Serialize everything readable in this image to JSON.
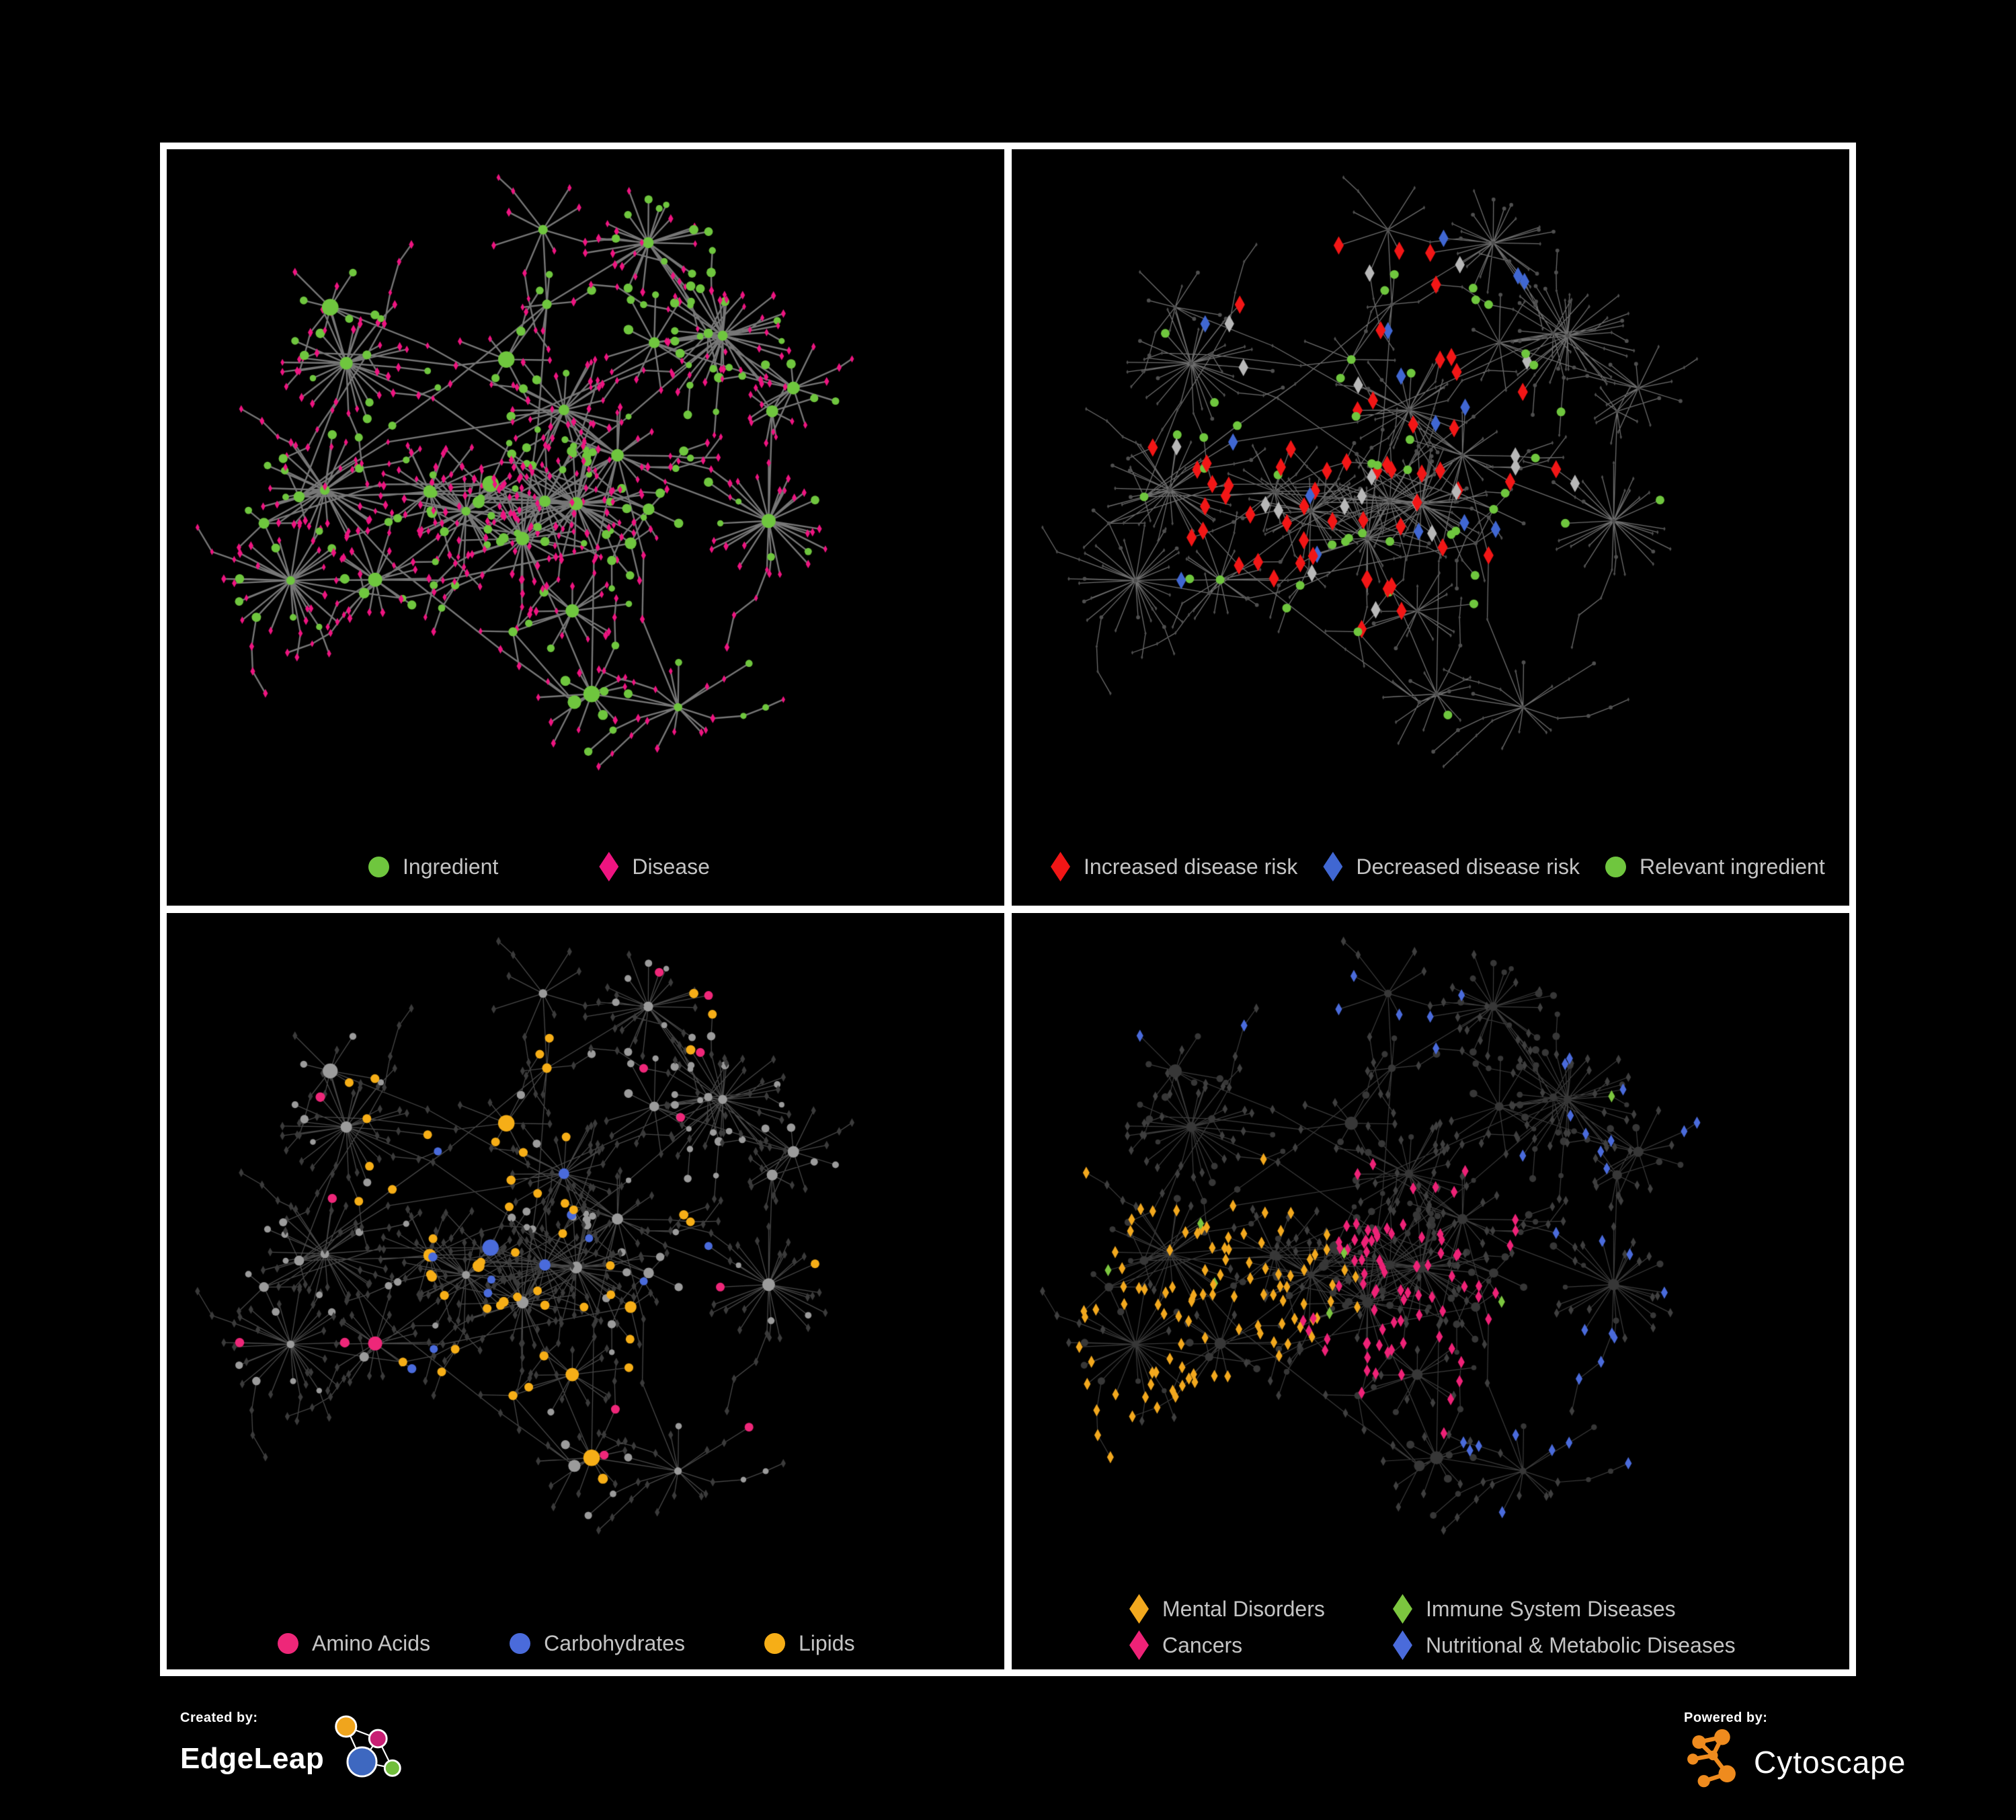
{
  "page": {
    "background": "#000000",
    "frame_color": "#FFFFFF"
  },
  "layout_seed": 20,
  "panels": [
    {
      "key": "ingredient-disease",
      "mode": "typed",
      "legend": {
        "items": [
          {
            "label": "Ingredient",
            "shape": "circle",
            "color": "#6FC63E"
          },
          {
            "label": "Disease",
            "shape": "diamond",
            "color": "#EE1480"
          }
        ]
      },
      "colors": {
        "ingredient": "#6FC63E",
        "disease": "#EE1480"
      },
      "edge": {
        "color": "#8C8C8C",
        "width": 2.4,
        "alpha": 0.85
      }
    },
    {
      "key": "disease-risk",
      "mode": "risk",
      "legend": {
        "items": [
          {
            "label": "Increased disease risk",
            "shape": "diamond",
            "color": "#F21616"
          },
          {
            "label": "Decreased disease risk",
            "shape": "diamond",
            "color": "#4067D2"
          },
          {
            "label": "Relevant ingredient",
            "shape": "circle",
            "color": "#6FC63E"
          }
        ]
      },
      "colors": {
        "increased": "#F21616",
        "decreased": "#4067D2",
        "neutral": "#B8B8B8",
        "ingredient": "#6FC63E",
        "dim": "#4F4F4F"
      },
      "edge": {
        "color": "#9C9C9C",
        "width": 1.3,
        "alpha": 0.7
      }
    },
    {
      "key": "compound-class",
      "mode": "compound",
      "legend": {
        "items": [
          {
            "label": "Amino Acids",
            "shape": "circle",
            "color": "#EE2779"
          },
          {
            "label": "Carbohydrates",
            "shape": "circle",
            "color": "#4A6BDB"
          },
          {
            "label": "Lipids",
            "shape": "circle",
            "color": "#F6AE17"
          }
        ]
      },
      "colors": {
        "amino": "#EE2779",
        "carbs": "#4A6BDB",
        "lipids": "#F6AE17",
        "ingredient_dim": "#9B9B9B",
        "disease_dim": "#3B3B3B"
      },
      "edge": {
        "color": "#8F8F8F",
        "width": 1.3,
        "alpha": 0.5
      }
    },
    {
      "key": "disease-category",
      "mode": "category",
      "legend": {
        "columns": 2,
        "items": [
          {
            "label": "Mental Disorders",
            "shape": "diamond",
            "color": "#F2A81E"
          },
          {
            "label": "Immune System Diseases",
            "shape": "diamond",
            "color": "#7CC63F"
          },
          {
            "label": "Cancers",
            "shape": "diamond",
            "color": "#EE2277"
          },
          {
            "label": "Nutritional & Metabolic Diseases",
            "shape": "diamond",
            "color": "#4A6BDB"
          }
        ]
      },
      "colors": {
        "mental": "#F2A81E",
        "immune": "#7CC63F",
        "cancers": "#EE2277",
        "nutritional": "#4A6BDB",
        "dim_disease": "#3F3F3F",
        "dim_ingredient": "#373737"
      },
      "edge": {
        "color": "#909090",
        "width": 1.2,
        "alpha": 0.42
      }
    }
  ],
  "footer": {
    "created": {
      "label": "Created by:",
      "brand": "EdgeLeap",
      "logo_colors": {
        "blue": "#3E68C0",
        "orange": "#F0A51D",
        "pink": "#C81F74",
        "green": "#71BE3C"
      }
    },
    "powered": {
      "label": "Powered by:",
      "brand": "Cytoscape",
      "logo_color": "#EF8B1E"
    }
  }
}
